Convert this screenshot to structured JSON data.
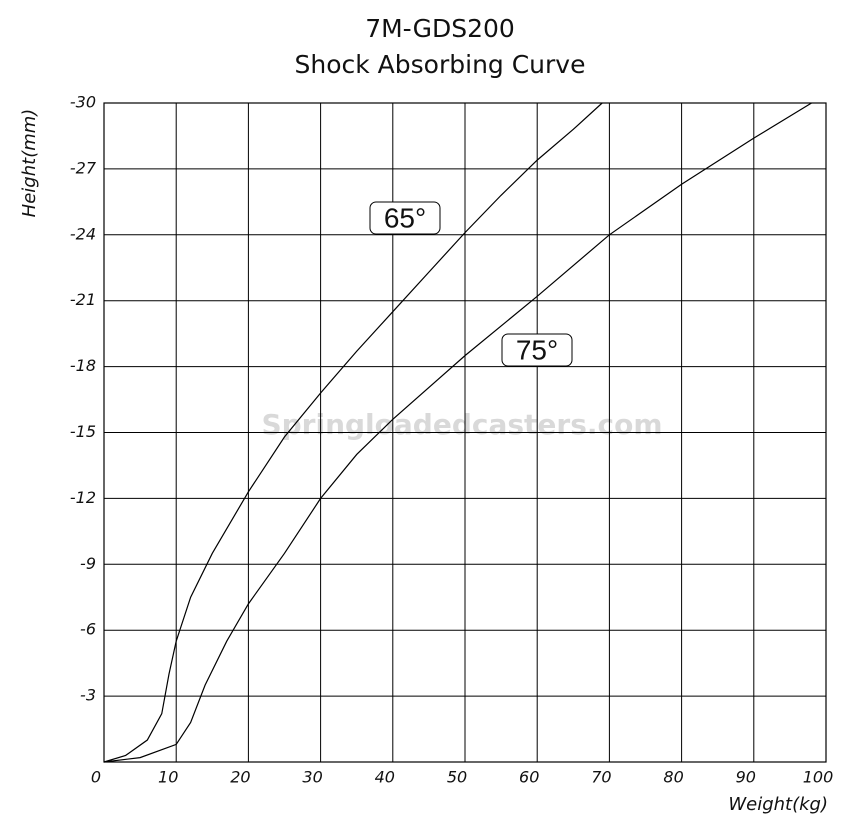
{
  "chart_data": {
    "type": "line",
    "title": "7M-GDS200",
    "subtitle": "Shock Absorbing Curve",
    "x_label": "Weight(kg)",
    "y_label": "Height(mm)",
    "watermark": "Springloadedcasters.com",
    "xlim": [
      0,
      100
    ],
    "xticks": [
      0,
      10,
      20,
      30,
      40,
      50,
      60,
      70,
      80,
      90,
      100
    ],
    "ylim": [
      0,
      -30
    ],
    "yticks": [
      -3,
      -6,
      -9,
      -12,
      -15,
      -18,
      -21,
      -24,
      -27,
      -30
    ],
    "grid": true,
    "series": [
      {
        "name": "65°",
        "color": "#000000",
        "x": [
          0,
          3,
          6,
          8,
          9,
          10,
          12,
          15,
          20,
          25,
          30,
          35,
          40,
          45,
          50,
          55,
          60,
          65,
          69
        ],
        "values": [
          0,
          -0.3,
          -1,
          -2.2,
          -4,
          -5.5,
          -7.5,
          -9.5,
          -12.3,
          -14.8,
          -16.8,
          -18.7,
          -20.5,
          -22.3,
          -24.1,
          -25.8,
          -27.4,
          -28.8,
          -30
        ]
      },
      {
        "name": "75°",
        "color": "#000000",
        "x": [
          0,
          5,
          10,
          12,
          14,
          17,
          20,
          25,
          30,
          35,
          40,
          50,
          60,
          70,
          80,
          90,
          98
        ],
        "values": [
          0,
          -0.2,
          -0.8,
          -1.8,
          -3.5,
          -5.5,
          -7.2,
          -9.5,
          -12,
          -14,
          -15.6,
          -18.5,
          -21.2,
          -24,
          -26.3,
          -28.4,
          -30
        ]
      }
    ]
  }
}
